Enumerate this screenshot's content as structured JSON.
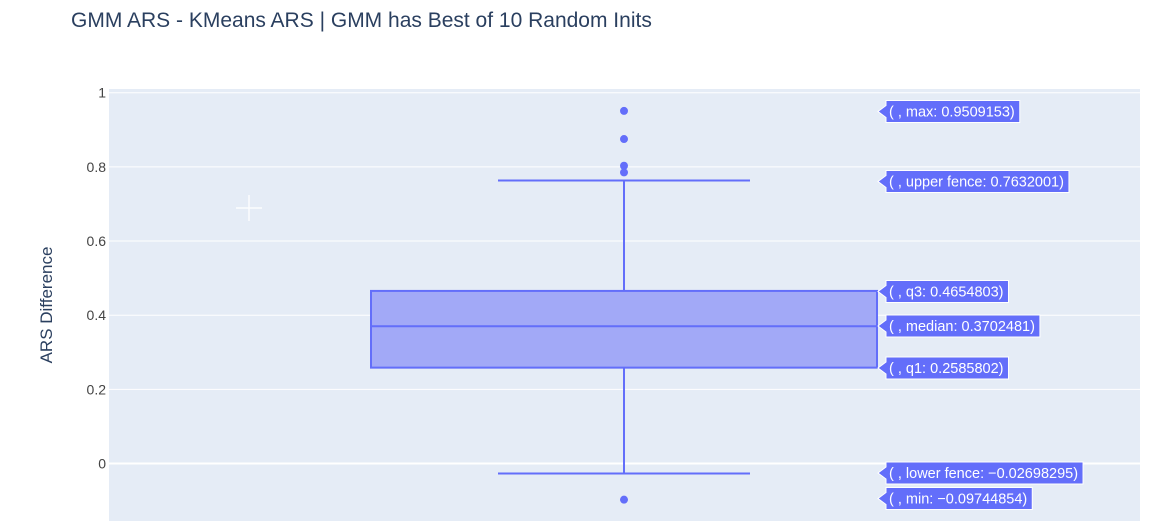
{
  "chart_data": {
    "type": "box",
    "title": "GMM ARS - KMeans ARS | GMM has Best of 10 Random Inits",
    "xlabel": "",
    "ylabel": "ARS Difference",
    "ylim": [
      -0.155,
      1.01
    ],
    "yticks": [
      0,
      0.2,
      0.4,
      0.6,
      0.8,
      1
    ],
    "ytick_labels": [
      "0",
      "0.2",
      "0.4",
      "0.6",
      "0.8",
      "1"
    ],
    "grid": true,
    "box": {
      "min": -0.09744854,
      "lower_fence": -0.02698295,
      "q1": 0.2585802,
      "median": 0.3702481,
      "q3": 0.4654803,
      "upper_fence": 0.7632001,
      "max": 0.9509153,
      "outliers": [
        0.9509153,
        0.875,
        0.803,
        0.785,
        -0.09744854
      ]
    },
    "hover_labels": [
      {
        "key": "max",
        "text": "( , max: 0.9509153)",
        "value": 0.9509153
      },
      {
        "key": "upper_fence",
        "text": "( , upper fence: 0.7632001)",
        "value": 0.7632001
      },
      {
        "key": "q3",
        "text": "( , q3: 0.4654803)",
        "value": 0.4654803
      },
      {
        "key": "median",
        "text": "( , median: 0.3702481)",
        "value": 0.3702481
      },
      {
        "key": "q1",
        "text": "( , q1: 0.2585802)",
        "value": 0.2585802
      },
      {
        "key": "lower_fence",
        "text": "( , lower fence: −0.02698295)",
        "value": -0.02698295
      },
      {
        "key": "min",
        "text": "( , min: −0.09744854)",
        "value": -0.09744854
      }
    ],
    "colors": {
      "plot_bg": "#e5ecf6",
      "grid": "#ffffff",
      "box_line": "#636efa",
      "box_fill": "#a2a9f7",
      "label_bg": "#636efa"
    }
  }
}
